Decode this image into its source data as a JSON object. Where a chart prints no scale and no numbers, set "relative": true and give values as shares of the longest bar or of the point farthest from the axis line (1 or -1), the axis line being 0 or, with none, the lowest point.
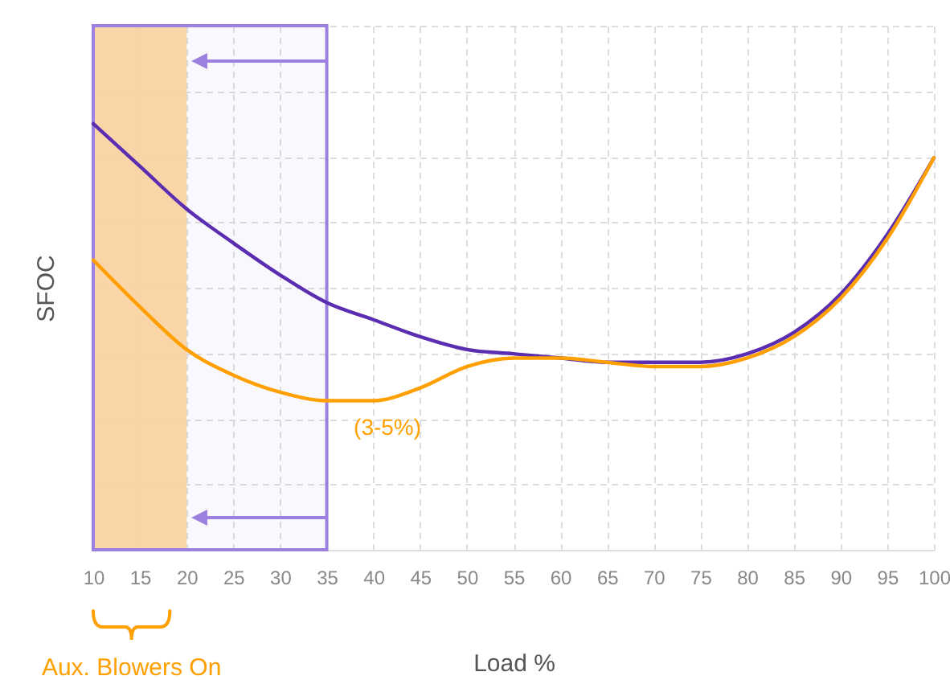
{
  "chart_data": {
    "type": "line",
    "xlabel": "Load %",
    "ylabel": "SFOC",
    "relative": true,
    "grid": true,
    "line_style": "solid",
    "x": [
      10,
      15,
      20,
      25,
      30,
      35,
      40,
      45,
      50,
      55,
      60,
      65,
      70,
      75,
      80,
      85,
      90,
      95,
      100
    ],
    "xlim": [
      10,
      100
    ],
    "xticks": [
      10,
      15,
      20,
      25,
      30,
      35,
      40,
      45,
      50,
      55,
      60,
      65,
      70,
      75,
      80,
      85,
      90,
      95,
      100
    ],
    "series": [
      {
        "color": "#5b2db0",
        "values": [
          1.0,
          0.9,
          0.8,
          0.72,
          0.645,
          0.58,
          0.54,
          0.5,
          0.47,
          0.46,
          0.45,
          0.44,
          0.44,
          0.44,
          0.46,
          0.51,
          0.6,
          0.74,
          0.92
        ]
      },
      {
        "color": "#ffa000",
        "values": [
          0.68,
          0.57,
          0.47,
          0.41,
          0.37,
          0.35,
          0.35,
          0.38,
          0.43,
          0.45,
          0.45,
          0.44,
          0.43,
          0.43,
          0.45,
          0.5,
          0.59,
          0.73,
          0.92
        ]
      }
    ],
    "bands": [
      {
        "axis": "x",
        "from": 10,
        "to": 20,
        "color": "#ffd8a0"
      },
      {
        "axis": "x",
        "from": 10,
        "to": 35,
        "color": "#9b80e0"
      }
    ],
    "annotations": [
      "(3-5%)",
      "Aux. Blowers On"
    ]
  }
}
